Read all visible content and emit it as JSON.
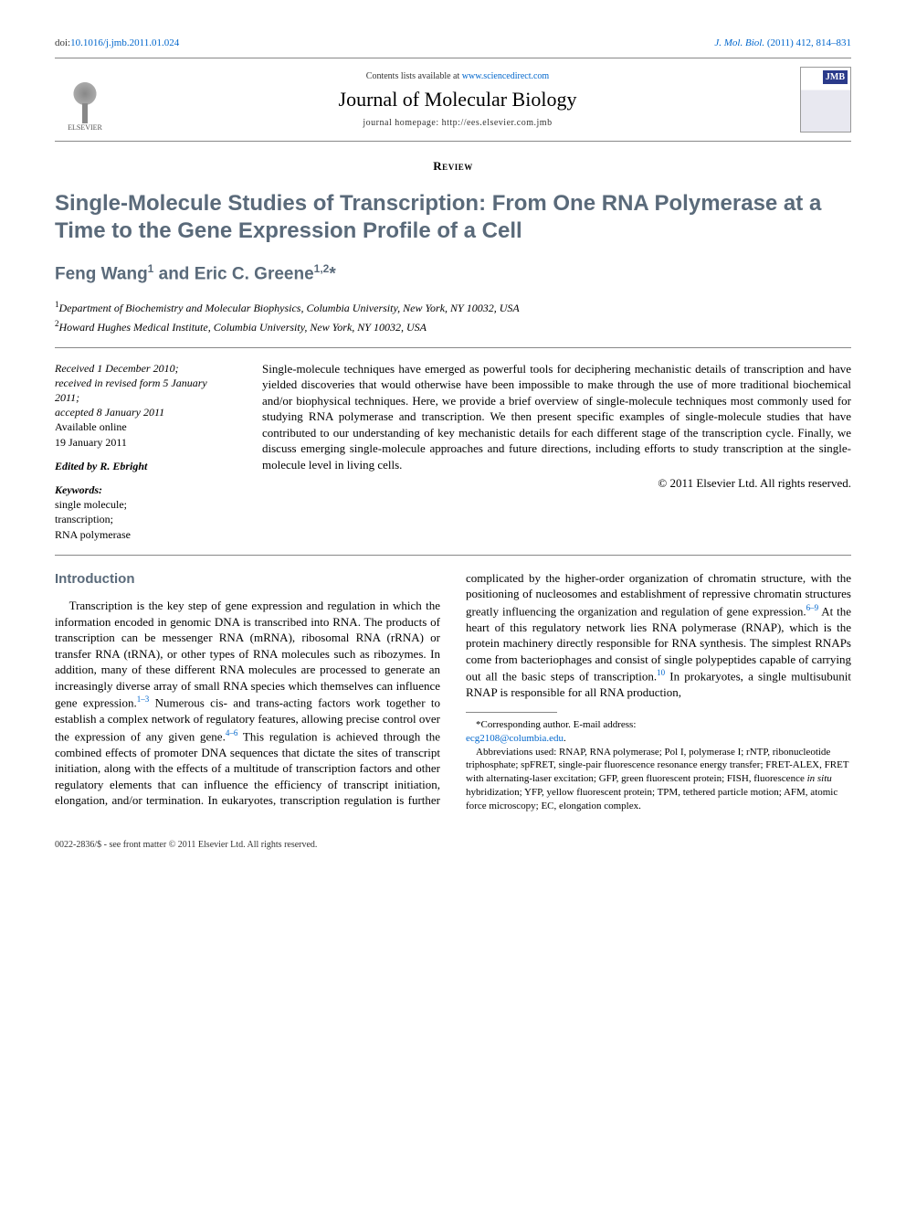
{
  "top": {
    "doi_label": "doi:",
    "doi": "10.1016/j.jmb.2011.01.024",
    "cite_journal": "J. Mol. Biol.",
    "cite_rest": " (2011) 412, 814–831"
  },
  "header": {
    "elsevier": "ELSEVIER",
    "sd_pre": "Contents lists available at ",
    "sd_link": "www.sciencedirect.com",
    "journal": "Journal of Molecular Biology",
    "jh": "journal homepage: http://ees.elsevier.com.jmb",
    "jmb": "JMB"
  },
  "labels": {
    "review": "Review"
  },
  "title": "Single-Molecule Studies of Transcription: From One RNA Polymerase at a Time to the Gene Expression Profile of a Cell",
  "authors_html": "Feng Wang¹ and Eric C. Greene¹,²*",
  "authors": {
    "a1": "Feng Wang",
    "sup1": "1",
    "and": " and ",
    "a2": "Eric C. Greene",
    "sup2": "1,2",
    "star": "*"
  },
  "affiliations": {
    "a1_sup": "1",
    "a1": "Department of Biochemistry and Molecular Biophysics, Columbia University, New York, NY 10032, USA",
    "a2_sup": "2",
    "a2": "Howard Hughes Medical Institute, Columbia University, New York, NY 10032, USA"
  },
  "meta": {
    "received": "Received 1 December 2010;",
    "revised": "received in revised form 5 January 2011;",
    "accepted": "accepted 8 January 2011",
    "online_label": "Available online",
    "online_date": "19 January 2011",
    "edited_label": "Edited by R. Ebright",
    "kw_label": "Keywords:",
    "kw1": "single molecule;",
    "kw2": "transcription;",
    "kw3": "RNA polymerase"
  },
  "abstract": "Single-molecule techniques have emerged as powerful tools for deciphering mechanistic details of transcription and have yielded discoveries that would otherwise have been impossible to make through the use of more traditional biochemical and/or biophysical techniques. Here, we provide a brief overview of single-molecule techniques most commonly used for studying RNA polymerase and transcription. We then present specific examples of single-molecule studies that have contributed to our understanding of key mechanistic details for each different stage of the transcription cycle. Finally, we discuss emerging single-molecule approaches and future directions, including efforts to study transcription at the single-molecule level in living cells.",
  "copyright": "© 2011 Elsevier Ltd. All rights reserved.",
  "intro": {
    "heading": "Introduction",
    "p1a": "Transcription is the key step of gene expression and regulation in which the information encoded in genomic DNA is transcribed into RNA. The products of transcription can be messenger RNA (mRNA), ribosomal RNA (rRNA) or transfer RNA (tRNA), or other types of RNA molecules such as ribozymes. In addition, many of these different RNA molecules are processed to generate an increasingly diverse array of small RNA species which themselves can influ",
    "p1b_pre": "ence gene expression.",
    "p1b_ref1": "1–3",
    "p1b_mid1": " Numerous cis- and trans-acting factors work together to establish a complex network of regulatory features, allowing precise control over the expression of any given gene.",
    "p1b_ref2": "4–6",
    "p1b_mid2": " This regulation is achieved through the combined effects of promoter DNA sequences that dictate the sites of transcript initiation, along with the effects of a multitude of transcription factors and other regulatory elements that can influence the efficiency of transcript initiation, elongation, and/or termination. In eukaryotes, transcription regulation is further complicated by the higher-order organization of chromatin structure, with the positioning of nucleosomes and establishment of repressive chromatin structures greatly influencing the organization and regulation of gene expression.",
    "p1b_ref3": "6–9",
    "p1b_mid3": " At the heart of this regulatory network lies RNA polymerase (RNAP), which is the protein machinery directly responsible for RNA synthesis. The simplest RNAPs come from bacteriophages and consist of single polypeptides capable of carrying out all the basic steps of transcription.",
    "p1b_ref4": "10",
    "p1b_mid4": " In prokaryotes, a single multisubunit RNAP is responsible for all RNA production,"
  },
  "footnote": {
    "corr_label": "*Corresponding author.",
    "corr_email_label": " E-mail address:",
    "corr_email": "ecg2108@columbia.edu",
    "abbrev": "Abbreviations used: RNAP, RNA polymerase; Pol I, polymerase I; rNTP, ribonucleotide triphosphate; spFRET, single-pair fluorescence resonance energy transfer; FRET-ALEX, FRET with alternating-laser excitation; GFP, green fluorescent protein; FISH, fluorescence ",
    "abbrev_it": "in situ",
    "abbrev2": " hybridization; YFP, yellow fluorescent protein; TPM, tethered particle motion; AFM, atomic force microscopy; EC, elongation complex."
  },
  "bottom": "0022-2836/$ - see front matter © 2011 Elsevier Ltd. All rights reserved.",
  "colors": {
    "heading": "#5a6a7a",
    "link": "#0066cc",
    "rule": "#888888"
  }
}
